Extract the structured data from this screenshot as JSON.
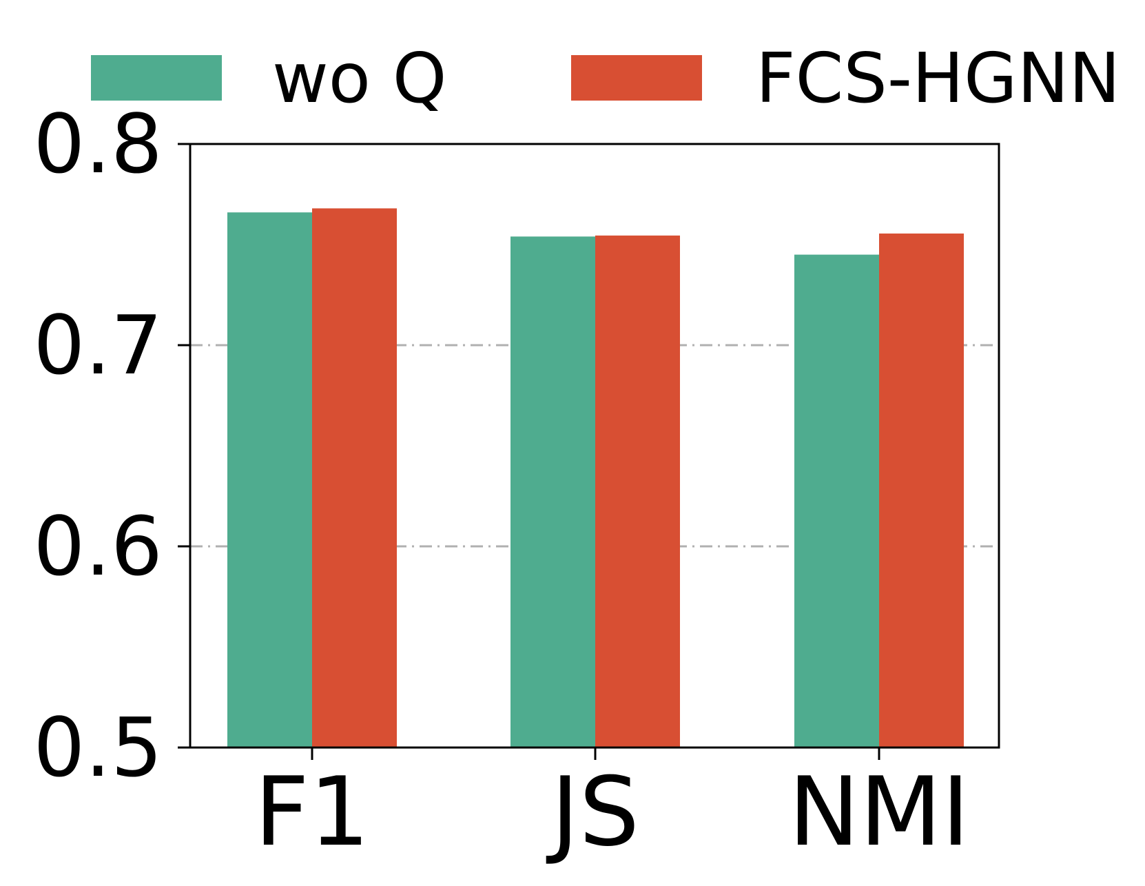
{
  "chart_data": {
    "type": "bar",
    "categories": [
      "F1",
      "JS",
      "NMI"
    ],
    "series": [
      {
        "name": "wo Q",
        "color": "#4fac8f",
        "values": [
          0.766,
          0.754,
          0.745
        ]
      },
      {
        "name": "FCS-HGNN",
        "color": "#d84f33",
        "values": [
          0.768,
          0.7545,
          0.7555
        ]
      }
    ],
    "title": "",
    "xlabel": "",
    "ylabel": "",
    "ylim": [
      0.5,
      0.8
    ],
    "yticks": [
      0.5,
      0.6,
      0.7,
      0.8
    ],
    "ytick_labels": [
      "0.5",
      "0.6",
      "0.7",
      "0.8"
    ],
    "grid": "horizontal dash-dot at 0.6 and 0.7",
    "grid_color": "#b0b0b0",
    "legend_position": "top, above plot"
  }
}
